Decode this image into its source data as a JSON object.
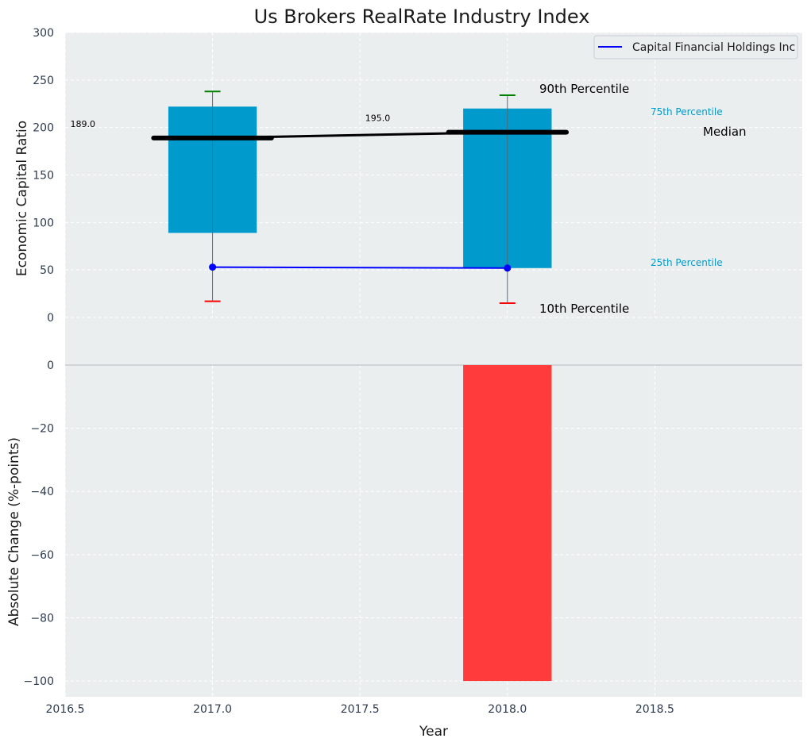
{
  "chart_data": [
    {
      "type": "bar",
      "title": "Us Brokers RealRate Industry Index",
      "xlabel": "",
      "ylabel": "Economic Capital Ratio",
      "ylim": [
        0,
        300
      ],
      "yticks": [
        0,
        50,
        100,
        150,
        200,
        250,
        300
      ],
      "xlim": [
        2016.5,
        2019.0
      ],
      "grid": true,
      "legend_position": "top-right",
      "x": [
        2017.0,
        2018.0
      ],
      "p10": [
        17,
        15
      ],
      "p25": [
        89,
        52
      ],
      "median": [
        189.0,
        195.0
      ],
      "p75": [
        222,
        220
      ],
      "p90": [
        238,
        234
      ],
      "median_labels": [
        "189.0",
        "195.0"
      ],
      "series": [
        {
          "name": "Capital Financial Holdings Inc",
          "x": [
            2017.0,
            2018.0
          ],
          "values": [
            53,
            52
          ]
        }
      ],
      "annotations": {
        "p90": "90th Percentile",
        "p75": "75th Percentile",
        "median": "Median",
        "p25": "25th Percentile",
        "p10": "10th Percentile"
      },
      "colors": {
        "band": "#009ACD",
        "median_line": "#000000",
        "company_line": "#0000FF",
        "p90_cap": "#008000",
        "p10_cap": "#FF0000"
      }
    },
    {
      "type": "bar",
      "xlabel": "Year",
      "ylabel": "Absolute Change (%-points)",
      "ylim": [
        -105,
        0
      ],
      "yticks": [
        -100,
        -80,
        -60,
        -40,
        -20,
        0
      ],
      "xticks": [
        2016.5,
        2017.0,
        2017.5,
        2018.0,
        2018.5
      ],
      "xlim": [
        2016.5,
        2019.0
      ],
      "grid": true,
      "x": [
        2017.0,
        2018.0
      ],
      "values": [
        0,
        -100
      ],
      "colors": {
        "negative": "#FF3B3B"
      }
    }
  ]
}
